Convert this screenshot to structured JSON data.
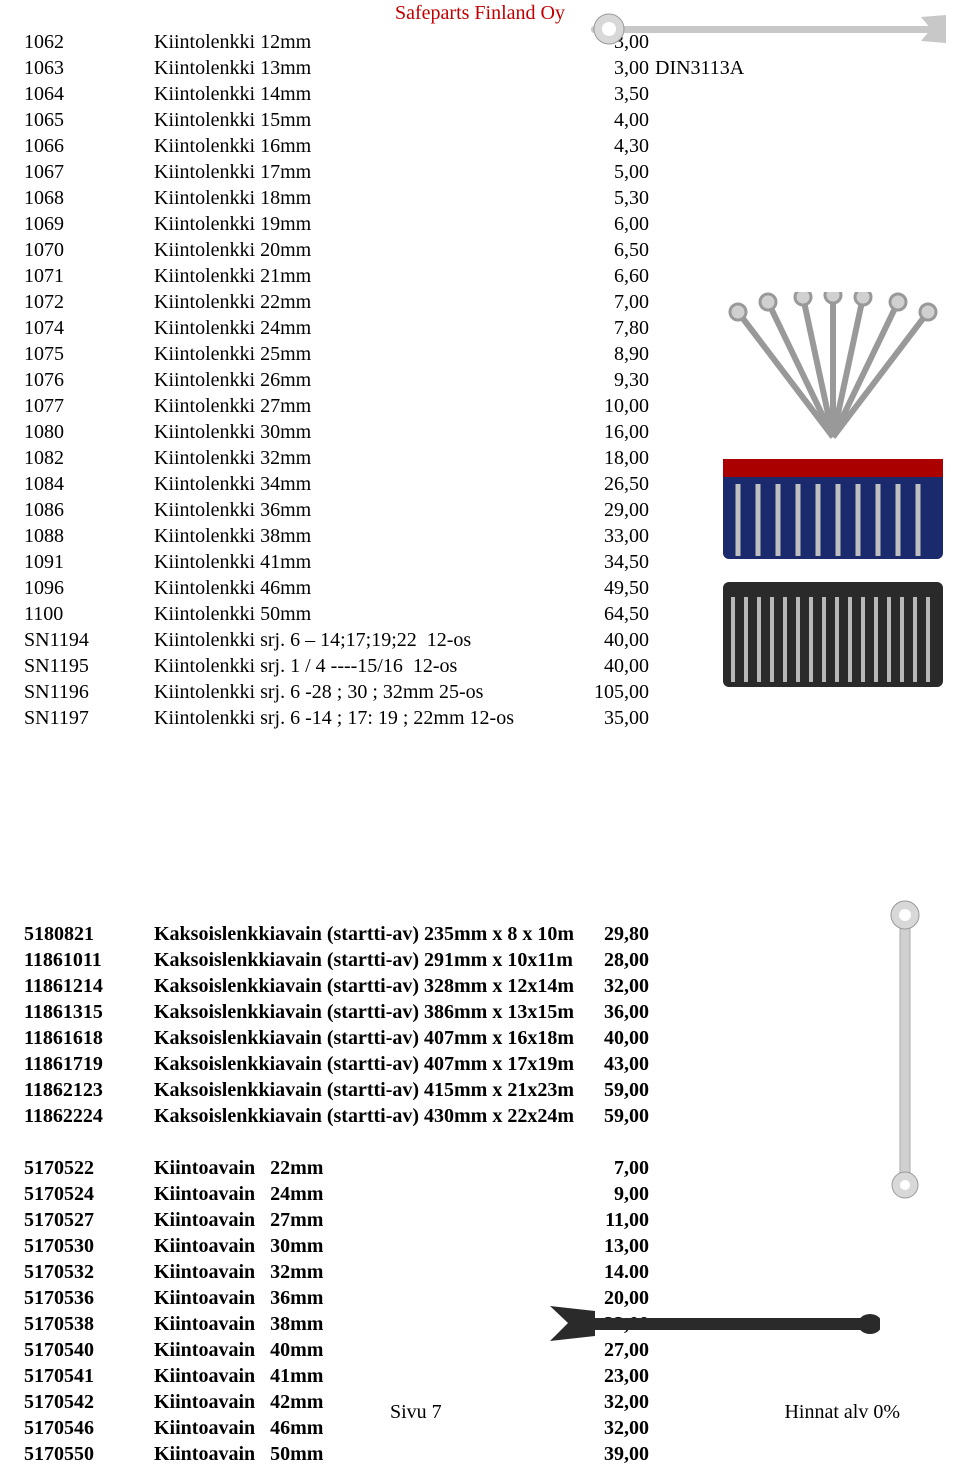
{
  "header": "Safeparts Finland Oy",
  "section1": {
    "rows": [
      {
        "code": "1062",
        "desc": "Kiintolenkki 12mm",
        "price": "3,00",
        "extra": ""
      },
      {
        "code": "1063",
        "desc": "Kiintolenkki 13mm",
        "price": "3,00",
        "extra": "DIN3113A"
      },
      {
        "code": "1064",
        "desc": "Kiintolenkki 14mm",
        "price": "3,50",
        "extra": ""
      },
      {
        "code": "1065",
        "desc": "Kiintolenkki 15mm",
        "price": "4,00",
        "extra": ""
      },
      {
        "code": "1066",
        "desc": "Kiintolenkki 16mm",
        "price": "4,30",
        "extra": ""
      },
      {
        "code": "1067",
        "desc": "Kiintolenkki 17mm",
        "price": "5,00",
        "extra": ""
      },
      {
        "code": "1068",
        "desc": "Kiintolenkki 18mm",
        "price": "5,30",
        "extra": ""
      },
      {
        "code": "1069",
        "desc": "Kiintolenkki 19mm",
        "price": "6,00",
        "extra": ""
      },
      {
        "code": "1070",
        "desc": "Kiintolenkki 20mm",
        "price": "6,50",
        "extra": ""
      },
      {
        "code": "1071",
        "desc": "Kiintolenkki 21mm",
        "price": "6,60",
        "extra": ""
      },
      {
        "code": "1072",
        "desc": "Kiintolenkki 22mm",
        "price": "7,00",
        "extra": ""
      },
      {
        "code": "1074",
        "desc": "Kiintolenkki 24mm",
        "price": "7,80",
        "extra": ""
      },
      {
        "code": "1075",
        "desc": "Kiintolenkki 25mm",
        "price": "8,90",
        "extra": ""
      },
      {
        "code": "1076",
        "desc": "Kiintolenkki 26mm",
        "price": "9,30",
        "extra": ""
      },
      {
        "code": "1077",
        "desc": "Kiintolenkki 27mm",
        "price": "10,00",
        "extra": ""
      },
      {
        "code": "1080",
        "desc": "Kiintolenkki 30mm",
        "price": "16,00",
        "extra": ""
      },
      {
        "code": "1082",
        "desc": "Kiintolenkki 32mm",
        "price": "18,00",
        "extra": ""
      },
      {
        "code": "1084",
        "desc": "Kiintolenkki 34mm",
        "price": "26,50",
        "extra": ""
      },
      {
        "code": "1086",
        "desc": "Kiintolenkki 36mm",
        "price": "29,00",
        "extra": ""
      },
      {
        "code": "1088",
        "desc": "Kiintolenkki 38mm",
        "price": "33,00",
        "extra": ""
      },
      {
        "code": "1091",
        "desc": "Kiintolenkki 41mm",
        "price": "34,50",
        "extra": ""
      },
      {
        "code": "1096",
        "desc": "Kiintolenkki 46mm",
        "price": "49,50",
        "extra": ""
      },
      {
        "code": "1100",
        "desc": "Kiintolenkki 50mm",
        "price": "64,50",
        "extra": ""
      },
      {
        "code": "SN1194",
        "desc": "Kiintolenkki srj. 6 – 14;17;19;22  12-os",
        "price": "40,00",
        "extra": ""
      },
      {
        "code": "SN1195",
        "desc": "Kiintolenkki srj. 1 / 4 ----15/16  12-os",
        "price": "40,00",
        "extra": ""
      },
      {
        "code": "SN1196",
        "desc": "Kiintolenkki srj. 6 -28 ; 30 ; 32mm 25-os",
        "price": "105,00",
        "extra": ""
      },
      {
        "code": "SN1197",
        "desc": "Kiintolenkki srj. 6 -14 ; 17: 19 ; 22mm 12-os",
        "price": "35,00",
        "extra": ""
      }
    ]
  },
  "section2": {
    "rows": [
      {
        "code": "5180821",
        "desc": "Kaksoislenkkiavain (startti-av) 235mm x 8 x 10m",
        "price": "29,80"
      },
      {
        "code": "11861011",
        "desc": "Kaksoislenkkiavain (startti-av) 291mm x 10x11m",
        "price": "28,00"
      },
      {
        "code": "11861214",
        "desc": "Kaksoislenkkiavain (startti-av) 328mm x 12x14m",
        "price": "32,00"
      },
      {
        "code": "11861315",
        "desc": "Kaksoislenkkiavain (startti-av) 386mm x 13x15m",
        "price": "36,00"
      },
      {
        "code": "11861618",
        "desc": "Kaksoislenkkiavain (startti-av) 407mm x 16x18m",
        "price": "40,00"
      },
      {
        "code": "11861719",
        "desc": "Kaksoislenkkiavain (startti-av) 407mm x 17x19m",
        "price": "43,00"
      },
      {
        "code": "11862123",
        "desc": "Kaksoislenkkiavain (startti-av) 415mm x 21x23m",
        "price": "59,00"
      },
      {
        "code": "11862224",
        "desc": "Kaksoislenkkiavain (startti-av) 430mm x 22x24m",
        "price": "59,00"
      }
    ]
  },
  "section3": {
    "rows": [
      {
        "code": "5170522",
        "desc": "Kiintoavain   22mm",
        "price": "7,00"
      },
      {
        "code": "5170524",
        "desc": "Kiintoavain   24mm",
        "price": "9,00"
      },
      {
        "code": "5170527",
        "desc": "Kiintoavain   27mm",
        "price": "11,00"
      },
      {
        "code": "5170530",
        "desc": "Kiintoavain   30mm",
        "price": "13,00"
      },
      {
        "code": "5170532",
        "desc": "Kiintoavain   32mm",
        "price": "14.00"
      },
      {
        "code": "5170536",
        "desc": "Kiintoavain   36mm",
        "price": "20,00"
      },
      {
        "code": "5170538",
        "desc": "Kiintoavain   38mm",
        "price": "22,00"
      },
      {
        "code": "5170540",
        "desc": "Kiintoavain   40mm",
        "price": "27,00"
      },
      {
        "code": "5170541",
        "desc": "Kiintoavain   41mm",
        "price": "23,00"
      },
      {
        "code": "5170542",
        "desc": "Kiintoavain   42mm",
        "price": "32,00"
      },
      {
        "code": "5170546",
        "desc": "Kiintoavain   46mm",
        "price": "32,00"
      },
      {
        "code": "5170550",
        "desc": "Kiintoavain   50mm",
        "price": "39,00"
      }
    ]
  },
  "footer": {
    "page": "Sivu 7",
    "vat": "Hinnat alv 0%"
  }
}
